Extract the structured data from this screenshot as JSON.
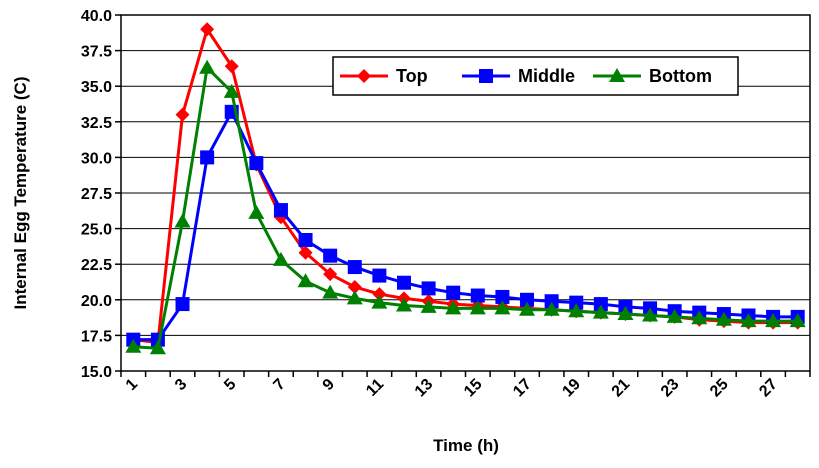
{
  "chart_data": {
    "type": "line",
    "title": "",
    "xlabel": "Time (h)",
    "ylabel": "Internal Egg Temperature (C)",
    "ylim": [
      15.0,
      40.0
    ],
    "xlim": [
      1,
      28
    ],
    "yticks": [
      "15.0",
      "17.5",
      "20.0",
      "22.5",
      "25.0",
      "27.5",
      "30.0",
      "32.5",
      "35.0",
      "37.5",
      "40.0"
    ],
    "xticks": [
      "1",
      "3",
      "5",
      "7",
      "9",
      "11",
      "13",
      "15",
      "17",
      "19",
      "21",
      "23",
      "25",
      "27"
    ],
    "grid": "horizontal",
    "legend_position": "top-right",
    "x": [
      1,
      2,
      3,
      4,
      5,
      6,
      7,
      8,
      9,
      10,
      11,
      12,
      13,
      14,
      15,
      16,
      17,
      18,
      19,
      20,
      21,
      22,
      23,
      24,
      25,
      26,
      27,
      28
    ],
    "series": [
      {
        "name": "Top",
        "color": "#ff0000",
        "marker": "diamond",
        "values": [
          17.2,
          17.0,
          33.0,
          39.0,
          36.4,
          29.5,
          25.8,
          23.3,
          21.8,
          20.9,
          20.4,
          20.1,
          19.9,
          19.7,
          19.6,
          19.5,
          19.4,
          19.3,
          19.2,
          19.1,
          19.0,
          18.9,
          18.8,
          18.6,
          18.5,
          18.4,
          18.4,
          18.4
        ]
      },
      {
        "name": "Middle",
        "color": "#0000ff",
        "marker": "square",
        "values": [
          17.2,
          17.2,
          19.7,
          30.0,
          33.2,
          29.6,
          26.3,
          24.2,
          23.1,
          22.3,
          21.7,
          21.2,
          20.8,
          20.5,
          20.3,
          20.2,
          20.0,
          19.9,
          19.8,
          19.7,
          19.5,
          19.4,
          19.2,
          19.1,
          19.0,
          18.9,
          18.8,
          18.8
        ]
      },
      {
        "name": "Bottom",
        "color": "#008000",
        "marker": "triangle",
        "values": [
          16.7,
          16.6,
          25.5,
          36.3,
          34.6,
          26.1,
          22.8,
          21.3,
          20.5,
          20.1,
          19.8,
          19.6,
          19.5,
          19.4,
          19.4,
          19.4,
          19.3,
          19.3,
          19.2,
          19.1,
          19.0,
          18.9,
          18.8,
          18.7,
          18.6,
          18.5,
          18.5,
          18.5
        ]
      }
    ]
  }
}
